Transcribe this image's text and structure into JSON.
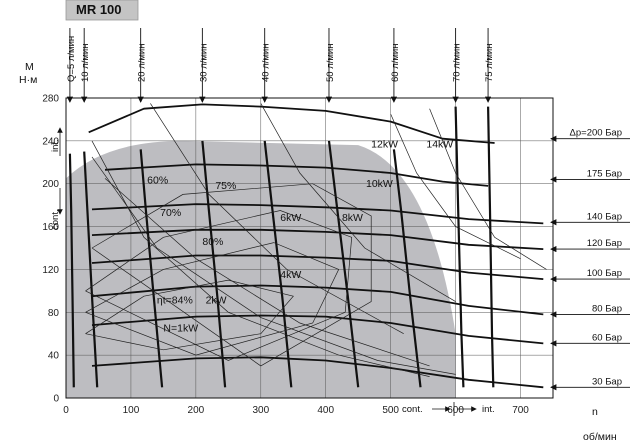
{
  "chart_data": {
    "type": "line",
    "title": "MR 100",
    "ylabel": "M",
    "yunit": "Н·м",
    "xlabel": "n",
    "xunit": "об/мин",
    "xlim": [
      0,
      750
    ],
    "ylim": [
      0,
      280
    ],
    "x_ticks": [
      0,
      100,
      200,
      300,
      400,
      500,
      600,
      700
    ],
    "y_ticks": [
      0,
      40,
      80,
      120,
      160,
      200,
      240,
      280
    ],
    "flow_labels": [
      {
        "label": "Q=5 л/мин",
        "x": 6
      },
      {
        "label": "10 л/мин",
        "x": 28
      },
      {
        "label": "20 л/мин",
        "x": 115
      },
      {
        "label": "30 л/мин",
        "x": 210
      },
      {
        "label": "40 л/мин",
        "x": 306
      },
      {
        "label": "50 л/мин",
        "x": 405
      },
      {
        "label": "60 л/мин",
        "x": 505
      },
      {
        "label": "70 л/мин",
        "x": 600
      },
      {
        "label": "75 л/мин",
        "x": 650
      }
    ],
    "flow_lines": [
      {
        "name": "5",
        "points": [
          [
            6,
            228
          ],
          [
            8,
            175
          ],
          [
            10,
            95
          ],
          [
            12,
            10
          ]
        ]
      },
      {
        "name": "10",
        "points": [
          [
            28,
            230
          ],
          [
            33,
            175
          ],
          [
            40,
            95
          ],
          [
            48,
            10
          ]
        ]
      },
      {
        "name": "20",
        "points": [
          [
            115,
            232
          ],
          [
            123,
            175
          ],
          [
            135,
            95
          ],
          [
            148,
            10
          ]
        ]
      },
      {
        "name": "30",
        "points": [
          [
            210,
            240
          ],
          [
            220,
            175
          ],
          [
            233,
            95
          ],
          [
            245,
            10
          ]
        ]
      },
      {
        "name": "40",
        "points": [
          [
            306,
            240
          ],
          [
            318,
            175
          ],
          [
            333,
            95
          ],
          [
            347,
            10
          ]
        ]
      },
      {
        "name": "50",
        "points": [
          [
            405,
            240
          ],
          [
            418,
            175
          ],
          [
            434,
            95
          ],
          [
            450,
            10
          ]
        ]
      },
      {
        "name": "60",
        "points": [
          [
            505,
            232
          ],
          [
            516,
            175
          ],
          [
            530,
            95
          ],
          [
            546,
            10
          ]
        ]
      },
      {
        "name": "70",
        "points": [
          [
            600,
            272
          ],
          [
            604,
            175
          ],
          [
            609,
            60
          ],
          [
            612,
            10
          ]
        ]
      },
      {
        "name": "75",
        "points": [
          [
            650,
            272
          ],
          [
            653,
            175
          ],
          [
            656,
            60
          ],
          [
            658,
            10
          ]
        ]
      }
    ],
    "pressure_labels": [
      {
        "label": "Δp=200 Бар",
        "y": 242
      },
      {
        "label": "175 Бар",
        "y": 204
      },
      {
        "label": "140 Бар",
        "y": 164
      },
      {
        "label": "120 Бар",
        "y": 139
      },
      {
        "label": "100 Бар",
        "y": 111
      },
      {
        "label": "80 Бар",
        "y": 78
      },
      {
        "label": "60 Бар",
        "y": 51
      },
      {
        "label": "30 Бар",
        "y": 10
      }
    ],
    "pressure_lines": [
      {
        "name": "200",
        "points": [
          [
            35,
            248
          ],
          [
            120,
            270
          ],
          [
            210,
            274
          ],
          [
            300,
            272
          ],
          [
            400,
            268
          ],
          [
            500,
            258
          ],
          [
            580,
            242
          ],
          [
            660,
            238
          ]
        ]
      },
      {
        "name": "175",
        "points": [
          [
            60,
            213
          ],
          [
            200,
            218
          ],
          [
            300,
            217
          ],
          [
            400,
            215
          ],
          [
            500,
            210
          ],
          [
            580,
            202
          ],
          [
            650,
            198
          ]
        ]
      },
      {
        "name": "140",
        "points": [
          [
            40,
            176
          ],
          [
            200,
            181
          ],
          [
            300,
            180
          ],
          [
            400,
            178
          ],
          [
            500,
            175
          ],
          [
            620,
            167
          ],
          [
            735,
            163
          ]
        ]
      },
      {
        "name": "120",
        "points": [
          [
            40,
            152
          ],
          [
            200,
            157
          ],
          [
            300,
            157
          ],
          [
            400,
            155
          ],
          [
            500,
            152
          ],
          [
            620,
            143
          ],
          [
            735,
            139
          ]
        ]
      },
      {
        "name": "100",
        "points": [
          [
            40,
            126
          ],
          [
            200,
            133
          ],
          [
            300,
            133
          ],
          [
            400,
            131
          ],
          [
            500,
            128
          ],
          [
            620,
            117
          ],
          [
            735,
            111
          ]
        ]
      },
      {
        "name": "80",
        "points": [
          [
            40,
            95
          ],
          [
            200,
            104
          ],
          [
            300,
            105
          ],
          [
            400,
            103
          ],
          [
            500,
            99
          ],
          [
            620,
            86
          ],
          [
            735,
            78
          ]
        ]
      },
      {
        "name": "60",
        "points": [
          [
            40,
            68
          ],
          [
            200,
            76
          ],
          [
            300,
            77
          ],
          [
            400,
            76
          ],
          [
            500,
            70
          ],
          [
            620,
            58
          ],
          [
            735,
            51
          ]
        ]
      },
      {
        "name": "30",
        "points": [
          [
            40,
            30
          ],
          [
            200,
            37
          ],
          [
            300,
            38
          ],
          [
            400,
            35
          ],
          [
            500,
            28
          ],
          [
            620,
            17
          ],
          [
            735,
            10
          ]
        ]
      }
    ],
    "continuous_region": {
      "max_speed": 600,
      "max_torque": 240
    },
    "zone_labels": [
      "int.",
      "cont.",
      "cont.",
      "int."
    ],
    "efficiency_labels": [
      {
        "label": "60%",
        "x": 125,
        "y": 200
      },
      {
        "label": "75%",
        "x": 230,
        "y": 195
      },
      {
        "label": "70%",
        "x": 145,
        "y": 170
      },
      {
        "label": "80%",
        "x": 210,
        "y": 143
      },
      {
        "label": "ηt=84%",
        "x": 140,
        "y": 88
      }
    ],
    "power_labels": [
      {
        "label": "12kW",
        "x": 470,
        "y": 234
      },
      {
        "label": "14kW",
        "x": 555,
        "y": 234
      },
      {
        "label": "10kW",
        "x": 462,
        "y": 197
      },
      {
        "label": "6kW",
        "x": 330,
        "y": 165
      },
      {
        "label": "8kW",
        "x": 425,
        "y": 165
      },
      {
        "label": "4kW",
        "x": 330,
        "y": 112
      },
      {
        "label": "2kW",
        "x": 215,
        "y": 88
      },
      {
        "label": "N=1kW",
        "x": 150,
        "y": 62
      }
    ]
  }
}
